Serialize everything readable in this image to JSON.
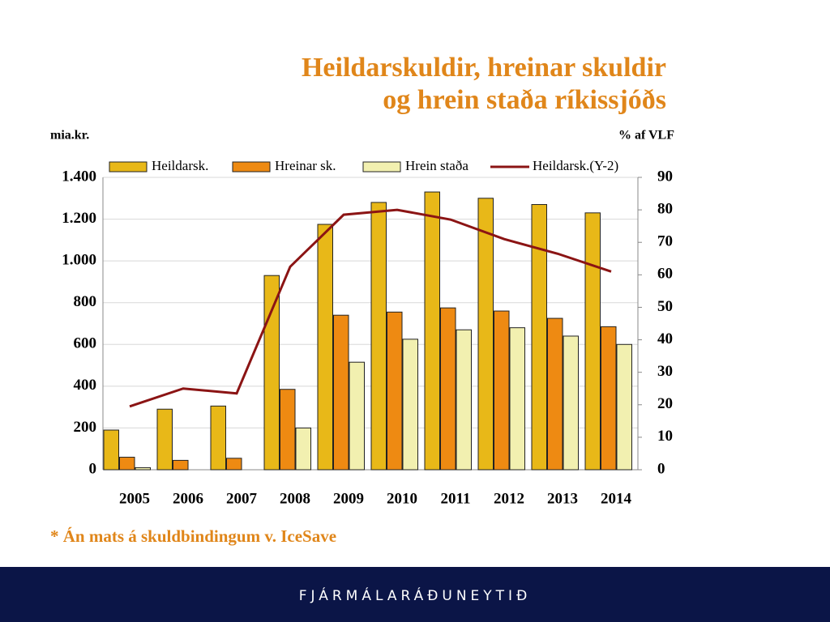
{
  "chart_data": {
    "type": "bar",
    "title": [
      "Heildarskuldir, hreinar skuldir",
      "og hrein staða ríkissjóðs"
    ],
    "y_label": "mia.kr.",
    "y2_label": "% af VLF",
    "categories": [
      "2005",
      "2006",
      "2007",
      "2008",
      "2009",
      "2010",
      "2011",
      "2012",
      "2013",
      "2014"
    ],
    "series": [
      {
        "name": "Heildarsk.",
        "color": "#e8b818",
        "values": [
          190,
          290,
          305,
          930,
          1175,
          1280,
          1330,
          1300,
          1270,
          1230
        ]
      },
      {
        "name": "Hreinar sk.",
        "color": "#ee8a12",
        "values": [
          60,
          45,
          55,
          385,
          740,
          755,
          775,
          760,
          725,
          685
        ]
      },
      {
        "name": "Hrein staða",
        "color": "#f2f0b0",
        "values": [
          10,
          null,
          null,
          200,
          515,
          625,
          670,
          680,
          640,
          600
        ]
      },
      {
        "name": "Heildarsk.(Y-2)",
        "color": "#8b1414",
        "type": "line",
        "axis": "y2",
        "values": [
          19.5,
          25,
          23.5,
          62.5,
          78.5,
          80,
          77,
          71,
          66.5,
          61
        ]
      }
    ],
    "ylim": [
      0,
      1400
    ],
    "yticks": [
      0,
      200,
      400,
      600,
      800,
      {
        "value": 1000,
        "label": "1.000"
      },
      {
        "value": 1200,
        "label": "1.200"
      },
      {
        "value": 1400,
        "label": "1.400"
      }
    ],
    "y2lim": [
      0,
      90
    ],
    "y2ticks": [
      0,
      10,
      20,
      30,
      40,
      50,
      60,
      70,
      80,
      90
    ],
    "grid": true,
    "annotation": "* Án mats á skuldbindingum v. IceSave"
  },
  "footer": "FJÁRMÁLARÁÐUNEYTIÐ"
}
